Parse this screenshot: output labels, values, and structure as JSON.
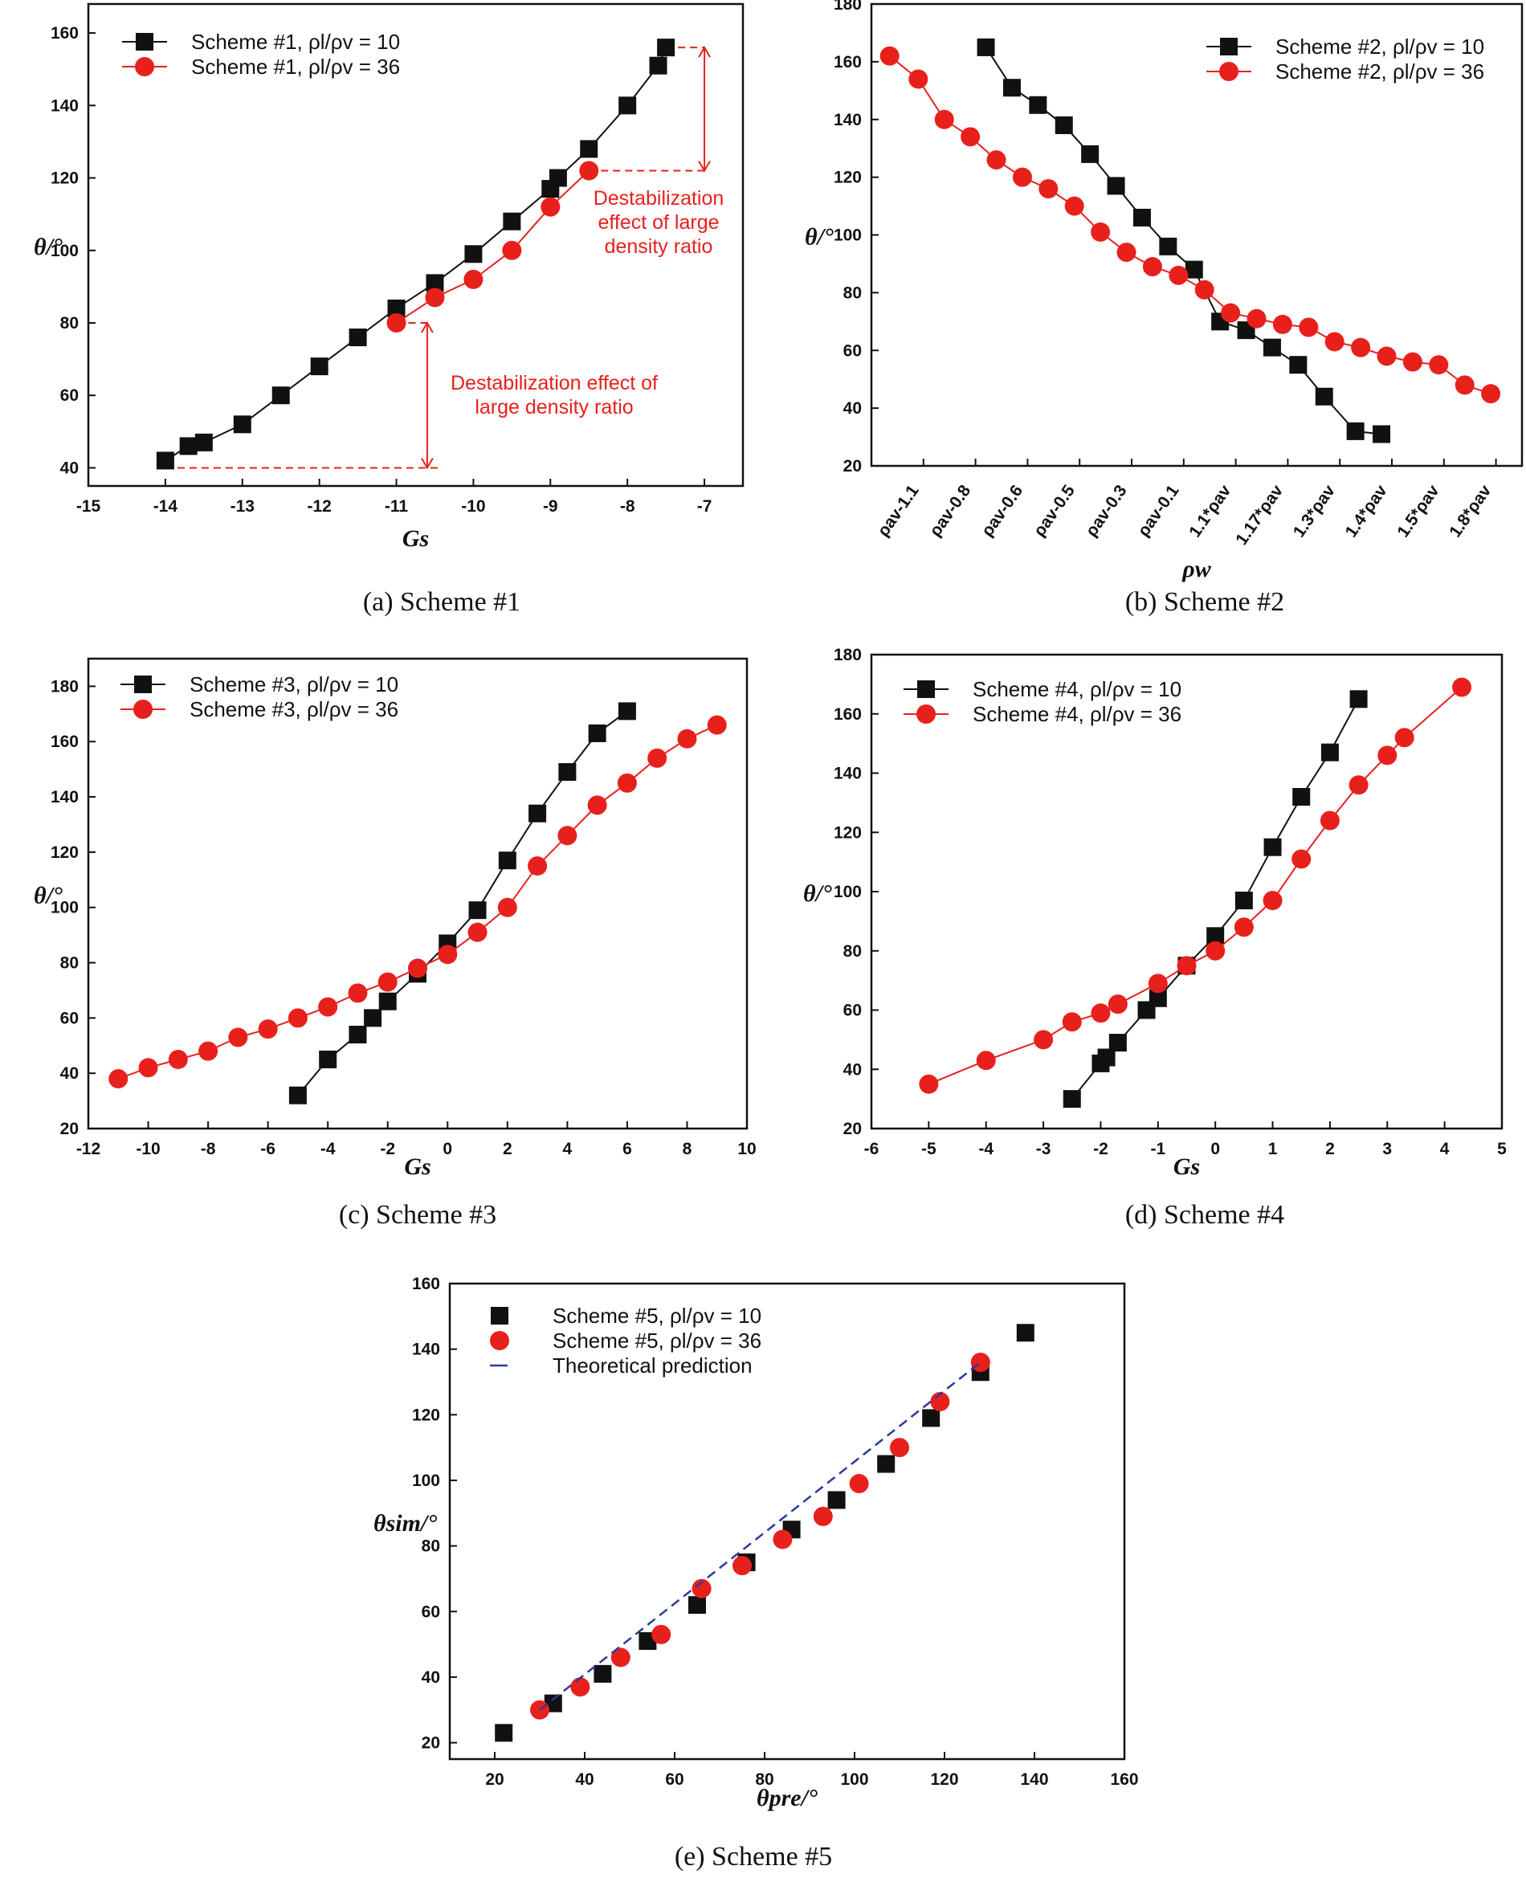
{
  "colors": {
    "black": "#111111",
    "red": "#e8201c",
    "blue": "#2a3a9a"
  },
  "chart_data": [
    {
      "id": "a",
      "type": "line",
      "caption": "(a) Scheme #1",
      "xlabel": "Gs",
      "ylabel": "θ/°",
      "xlim": [
        -15,
        -6.5
      ],
      "ylim": [
        35,
        168
      ],
      "xticks": [
        -15,
        -14,
        -13,
        -12,
        -11,
        -10,
        -9,
        -8,
        -7
      ],
      "yticks": [
        40,
        60,
        80,
        100,
        120,
        140,
        160
      ],
      "series": [
        {
          "name": "Scheme #1, ρl/ρv = 10",
          "color": "#111111",
          "marker": "square",
          "x": [
            -14,
            -13.7,
            -13.5,
            -13,
            -12.5,
            -12,
            -11.5,
            -11,
            -10.5,
            -10,
            -9.5,
            -9,
            -8.9,
            -8.5,
            -8,
            -7.6,
            -7.5
          ],
          "y": [
            42,
            46,
            47,
            52,
            60,
            68,
            76,
            84,
            91,
            99,
            108,
            117,
            120,
            128,
            140,
            151,
            156
          ]
        },
        {
          "name": "Scheme #1, ρl/ρv = 36",
          "color": "#e8201c",
          "marker": "circle",
          "x": [
            -11,
            -10.5,
            -10,
            -9.5,
            -9,
            -8.5
          ],
          "y": [
            80,
            87,
            92,
            100,
            112,
            122
          ]
        }
      ],
      "annotations": [
        {
          "lines": [
            "Destabilization",
            "effect of large",
            "density ratio"
          ]
        },
        {
          "lines": [
            "Destabilization effect of",
            "large density ratio"
          ]
        }
      ],
      "guides": [
        {
          "type": "h",
          "y": 156,
          "x0": -7.5,
          "x1": -7.0
        },
        {
          "type": "h",
          "y": 122,
          "x0": -8.5,
          "x1": -7.0
        },
        {
          "type": "arrow",
          "x": -7.0,
          "y0": 156,
          "y1": 122
        },
        {
          "type": "h",
          "y": 40,
          "x0": -14,
          "x1": -10.4
        },
        {
          "type": "h",
          "y": 80,
          "x0": -11,
          "x1": -10.6
        },
        {
          "type": "arrow",
          "x": -10.6,
          "y0": 80,
          "y1": 40
        }
      ],
      "legend": "top-left"
    },
    {
      "id": "b",
      "type": "line",
      "caption": "(b) Scheme #2",
      "xlabel": "ρw",
      "ylabel": "θ/°",
      "xlim": [
        0,
        12.5
      ],
      "ylim": [
        20,
        180
      ],
      "xtick_pos": [
        0,
        1,
        2,
        3,
        4,
        5,
        6,
        7,
        8,
        9,
        10,
        11,
        12
      ],
      "xtick_labels": [
        "ρav-1.1",
        "ρav-0.8",
        "ρav-0.6",
        "ρav-0.5",
        "ρav-0.3",
        "ρav-0.1",
        "1.1*ρav",
        "1.17*ρav",
        "1.3*ρav",
        "1.4*ρav",
        "1.5*ρav",
        "1.8*ρav"
      ],
      "xtick_label_pos": [
        0.3,
        1.3,
        2.3,
        3.3,
        4.3,
        5.3,
        6.3,
        7.3,
        8.3,
        9.3,
        10.3,
        11.3
      ],
      "yticks": [
        20,
        40,
        60,
        80,
        100,
        120,
        140,
        160,
        180
      ],
      "series": [
        {
          "name": "Scheme #2, ρl/ρv = 10",
          "color": "#111111",
          "marker": "square",
          "x": [
            2.2,
            2.7,
            3.2,
            3.7,
            4.2,
            4.7,
            5.2,
            5.7,
            6.2,
            6.7,
            7.2,
            7.7,
            8.2,
            8.7,
            9.3,
            9.8
          ],
          "y": [
            165,
            151,
            145,
            138,
            128,
            117,
            106,
            96,
            88,
            70,
            67,
            61,
            55,
            44,
            32,
            31
          ]
        },
        {
          "name": "Scheme #2, ρl/ρv = 36",
          "color": "#e8201c",
          "marker": "circle",
          "x": [
            0.35,
            0.9,
            1.4,
            1.9,
            2.4,
            2.9,
            3.4,
            3.9,
            4.4,
            4.9,
            5.4,
            5.9,
            6.4,
            6.9,
            7.4,
            7.9,
            8.4,
            8.9,
            9.4,
            9.9,
            10.4,
            10.9,
            11.4,
            11.9
          ],
          "y": [
            162,
            154,
            140,
            134,
            126,
            120,
            116,
            110,
            101,
            94,
            89,
            86,
            81,
            73,
            71,
            69,
            68,
            63,
            61,
            58,
            56,
            55,
            48,
            45
          ]
        }
      ],
      "legend": "top-right"
    },
    {
      "id": "c",
      "type": "line",
      "caption": "(c) Scheme #3",
      "xlabel": "Gs",
      "ylabel": "θ/°",
      "xlim": [
        -12,
        10
      ],
      "ylim": [
        20,
        190
      ],
      "xticks": [
        -12,
        -10,
        -8,
        -6,
        -4,
        -2,
        0,
        2,
        4,
        6,
        8,
        10
      ],
      "yticks": [
        20,
        40,
        60,
        80,
        100,
        120,
        140,
        160,
        180
      ],
      "series": [
        {
          "name": "Scheme #3, ρl/ρv = 10",
          "color": "#111111",
          "marker": "square",
          "x": [
            -5,
            -4,
            -3,
            -2.5,
            -2,
            -1,
            0,
            1,
            2,
            3,
            4,
            5,
            6
          ],
          "y": [
            32,
            45,
            54,
            60,
            66,
            76,
            87,
            99,
            117,
            134,
            149,
            163,
            171
          ]
        },
        {
          "name": "Scheme #3, ρl/ρv = 36",
          "color": "#e8201c",
          "marker": "circle",
          "x": [
            -11,
            -10,
            -9,
            -8,
            -7,
            -6,
            -5,
            -4,
            -3,
            -2,
            -1,
            0,
            1,
            2,
            3,
            4,
            5,
            6,
            7,
            8,
            9
          ],
          "y": [
            38,
            42,
            45,
            48,
            53,
            56,
            60,
            64,
            69,
            73,
            78,
            83,
            91,
            100,
            115,
            126,
            137,
            145,
            154,
            161,
            166
          ]
        }
      ],
      "legend": "top-left"
    },
    {
      "id": "d",
      "type": "line",
      "caption": "(d) Scheme #4",
      "xlabel": "Gs",
      "ylabel": "θ/°",
      "xlim": [
        -6,
        5
      ],
      "ylim": [
        20,
        180
      ],
      "xticks": [
        -6,
        -5,
        -4,
        -3,
        -2,
        -1,
        0,
        1,
        2,
        3,
        4,
        5
      ],
      "yticks": [
        20,
        40,
        60,
        80,
        100,
        120,
        140,
        160,
        180
      ],
      "series": [
        {
          "name": "Scheme #4, ρl/ρv = 10",
          "color": "#111111",
          "marker": "square",
          "x": [
            -2.5,
            -2,
            -1.9,
            -1.7,
            -1.2,
            -1,
            -0.5,
            0,
            0.5,
            1,
            1.5,
            2,
            2.5
          ],
          "y": [
            30,
            42,
            44,
            49,
            60,
            64,
            75,
            85,
            97,
            115,
            132,
            147,
            165
          ]
        },
        {
          "name": "Scheme #4, ρl/ρv = 36",
          "color": "#e8201c",
          "marker": "circle",
          "x": [
            -5,
            -4,
            -3,
            -2.5,
            -2,
            -1.7,
            -1,
            -0.5,
            0,
            0.5,
            1,
            1.5,
            2,
            2.5,
            3,
            3.3,
            4.3
          ],
          "y": [
            35,
            43,
            50,
            56,
            59,
            62,
            69,
            75,
            80,
            88,
            97,
            111,
            124,
            136,
            146,
            152,
            169
          ]
        }
      ],
      "legend": "top-left"
    },
    {
      "id": "e",
      "type": "scatter",
      "caption": "(e) Scheme #5",
      "xlabel": "θpre/°",
      "ylabel": "θsim/°",
      "xlim": [
        10,
        160
      ],
      "ylim": [
        15,
        160
      ],
      "xticks": [
        20,
        40,
        60,
        80,
        100,
        120,
        140,
        160
      ],
      "yticks": [
        20,
        40,
        60,
        80,
        100,
        120,
        140,
        160
      ],
      "series": [
        {
          "name": "Scheme #5, ρl/ρv = 10",
          "color": "#111111",
          "marker": "square",
          "x": [
            22,
            33,
            44,
            54,
            65,
            76,
            86,
            96,
            107,
            117,
            128,
            138
          ],
          "y": [
            23,
            32,
            41,
            51,
            62,
            75,
            85,
            94,
            105,
            119,
            133,
            145
          ]
        },
        {
          "name": "Scheme #5, ρl/ρv = 36",
          "color": "#e8201c",
          "marker": "circle",
          "x": [
            30,
            39,
            48,
            57,
            66,
            75,
            84,
            93,
            101,
            110,
            119,
            128
          ],
          "y": [
            30,
            37,
            46,
            53,
            67,
            74,
            82,
            89,
            99,
            110,
            124,
            136
          ]
        },
        {
          "name": "Theoretical prediction",
          "color": "#2a3a9a",
          "marker": "dash",
          "x": [
            30,
            128
          ],
          "y": [
            30,
            136
          ]
        }
      ],
      "legend": "top-left"
    }
  ]
}
